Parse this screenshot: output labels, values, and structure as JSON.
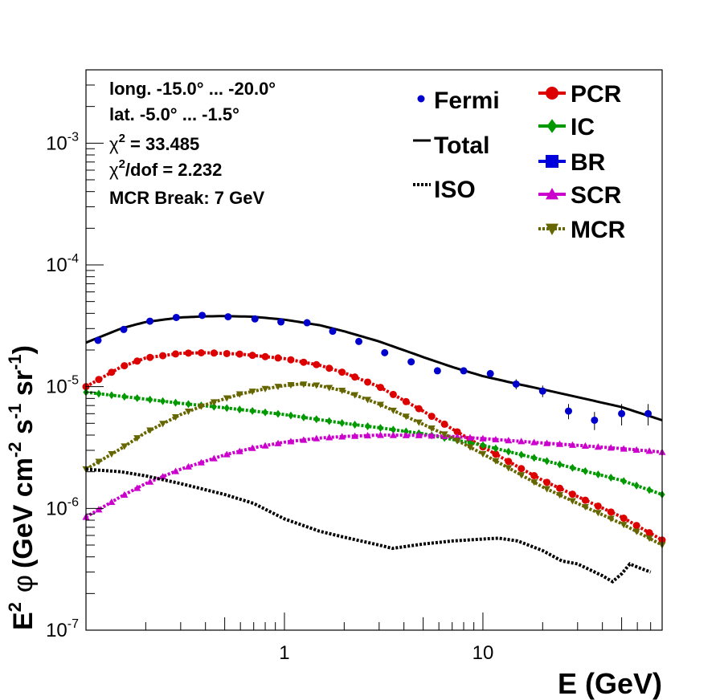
{
  "chart_data": {
    "type": "line",
    "xlabel": "E (GeV)",
    "ylabel_parts": {
      "e": "E",
      "e_sup": "2",
      "phi": "φ",
      "unit_open": "(GeV cm",
      "cm_sup": "-2",
      "s": " s",
      "s_sup": "-1",
      "sr": " sr",
      "sr_sup": "-1",
      "close": ")"
    },
    "x_scale": "log",
    "y_scale": "log",
    "xlim": [
      0.1,
      80
    ],
    "ylim": [
      1e-07,
      0.004
    ],
    "x_ticks": [
      {
        "value": 1,
        "label": "1"
      },
      {
        "value": 10,
        "label": "10"
      }
    ],
    "y_ticks": [
      {
        "value": 1e-07,
        "base": "10",
        "exp": "-7"
      },
      {
        "value": 1e-06,
        "base": "10",
        "exp": "-6"
      },
      {
        "value": 1e-05,
        "base": "10",
        "exp": "-5"
      },
      {
        "value": 0.0001,
        "base": "10",
        "exp": "-4"
      },
      {
        "value": 0.001,
        "base": "10",
        "exp": "-3"
      }
    ],
    "grid": false,
    "info": {
      "line1": "long. -15.0° ... -20.0°",
      "line2": "lat. -5.0° ... -1.5°",
      "chi_symbol": "χ",
      "chi_sup": "2",
      "chi_value": " = 33.485",
      "chidof_sup": "2",
      "chidof_value": "/dof = 2.232",
      "line5": "MCR Break:  7 GeV"
    },
    "legend_left": [
      {
        "key": "fermi",
        "label": "Fermi"
      },
      {
        "key": "total",
        "label": "Total"
      },
      {
        "key": "iso",
        "label": "ISO"
      }
    ],
    "legend_right": [
      {
        "key": "pcr",
        "label": "PCR"
      },
      {
        "key": "ic",
        "label": "IC"
      },
      {
        "key": "br",
        "label": "BR"
      },
      {
        "key": "scr",
        "label": "SCR"
      },
      {
        "key": "mcr",
        "label": "MCR"
      }
    ],
    "colors": {
      "fermi": "#0000cc",
      "total": "#000000",
      "iso": "#000000",
      "pcr": "#dd0000",
      "ic": "#009900",
      "br": "#0000dd",
      "scr": "#cc00cc",
      "mcr": "#666600"
    },
    "fermi": {
      "x": [
        0.115,
        0.155,
        0.21,
        0.285,
        0.385,
        0.52,
        0.71,
        0.96,
        1.3,
        1.75,
        2.37,
        3.2,
        4.35,
        5.9,
        8.0,
        10.9,
        14.7,
        20.0,
        27.0,
        36.5,
        50.0,
        68.0
      ],
      "y": [
        2.4e-05,
        2.95e-05,
        3.45e-05,
        3.7e-05,
        3.85e-05,
        3.75e-05,
        3.6e-05,
        3.4e-05,
        3.35e-05,
        2.85e-05,
        2.35e-05,
        1.9e-05,
        1.6e-05,
        1.35e-05,
        1.35e-05,
        1.28e-05,
        1.05e-05,
        9.2e-06,
        6.3e-06,
        5.3e-06,
        6e-06,
        6e-06
      ],
      "yerr": [
        1e-06,
        1e-06,
        1e-06,
        1e-06,
        1e-06,
        1e-06,
        1e-06,
        1e-06,
        1e-06,
        1e-06,
        8e-07,
        7e-07,
        6e-07,
        6e-07,
        7e-07,
        9e-07,
        1e-06,
        1e-06,
        9e-07,
        9e-07,
        1.2e-06,
        1.2e-06
      ]
    },
    "series": [
      {
        "key": "total",
        "style": "solid",
        "marker": "none",
        "x": [
          0.1,
          0.15,
          0.2,
          0.3,
          0.4,
          0.5,
          0.7,
          1.0,
          1.5,
          2.0,
          3.0,
          5.0,
          7.0,
          10,
          15,
          20,
          30,
          50,
          80
        ],
        "y": [
          2.3e-05,
          3e-05,
          3.4e-05,
          3.7e-05,
          3.78e-05,
          3.8e-05,
          3.75e-05,
          3.55e-05,
          3.2e-05,
          2.85e-05,
          2.35e-05,
          1.75e-05,
          1.45e-05,
          1.22e-05,
          1.05e-05,
          9.5e-06,
          8.2e-06,
          6.8e-06,
          5.3e-06
        ]
      },
      {
        "key": "pcr",
        "style": "dotted",
        "marker": "circle",
        "x": [
          0.1,
          0.15,
          0.2,
          0.3,
          0.4,
          0.6,
          1.0,
          1.5,
          2.0,
          3.0,
          5.0,
          7.0,
          10,
          15,
          20,
          30,
          50,
          80
        ],
        "y": [
          1e-05,
          1.45e-05,
          1.72e-05,
          1.88e-05,
          1.9e-05,
          1.85e-05,
          1.7e-05,
          1.5e-05,
          1.3e-05,
          1e-05,
          6.3e-06,
          4.5e-06,
          3.2e-06,
          2.2e-06,
          1.7e-06,
          1.25e-06,
          8.5e-07,
          5.5e-07
        ]
      },
      {
        "key": "ic",
        "style": "dotted",
        "marker": "diamond",
        "x": [
          0.1,
          0.2,
          0.3,
          0.5,
          1.0,
          2.0,
          3.0,
          5.0,
          10,
          20,
          30,
          50,
          80
        ],
        "y": [
          9e-06,
          7.9e-06,
          7.3e-06,
          6.7e-06,
          5.9e-06,
          5e-06,
          4.6e-06,
          4.1e-06,
          3.3e-06,
          2.5e-06,
          2.1e-06,
          1.7e-06,
          1.3e-06
        ]
      },
      {
        "key": "scr",
        "style": "dotted",
        "marker": "triangle",
        "x": [
          0.1,
          0.15,
          0.2,
          0.3,
          0.5,
          0.7,
          1.0,
          1.5,
          2.0,
          3.0,
          5.0,
          7.0,
          10,
          20,
          30,
          50,
          80
        ],
        "y": [
          8.5e-07,
          1.25e-06,
          1.6e-06,
          2.1e-06,
          2.75e-06,
          3.15e-06,
          3.5e-06,
          3.78e-06,
          3.9e-06,
          4e-06,
          3.98e-06,
          3.9e-06,
          3.75e-06,
          3.45e-06,
          3.3e-06,
          3.1e-06,
          2.9e-06
        ]
      },
      {
        "key": "mcr",
        "style": "dotted",
        "marker": "triangle-down",
        "x": [
          0.1,
          0.15,
          0.2,
          0.3,
          0.4,
          0.6,
          0.8,
          1.0,
          1.2,
          1.5,
          2.0,
          3.0,
          5.0,
          7.0,
          10,
          15,
          20,
          30,
          50,
          80
        ],
        "y": [
          2.1e-06,
          3.1e-06,
          4.2e-06,
          5.9e-06,
          7.1e-06,
          8.7e-06,
          9.6e-06,
          1.02e-05,
          1.05e-05,
          1.02e-05,
          9.2e-06,
          7.2e-06,
          4.9e-06,
          3.8e-06,
          2.8e-06,
          1.95e-06,
          1.5e-06,
          1.1e-06,
          7.5e-07,
          5e-07
        ]
      },
      {
        "key": "iso",
        "style": "dotted",
        "marker": "none",
        "x": [
          0.1,
          0.15,
          0.2,
          0.3,
          0.5,
          0.7,
          1.0,
          1.5,
          2.0,
          3.0,
          3.5,
          5.0,
          7.0,
          10,
          12,
          15,
          20,
          25,
          30,
          40,
          45,
          50,
          55,
          60,
          70
        ],
        "y": [
          2.1e-06,
          2e-06,
          1.85e-06,
          1.6e-06,
          1.3e-06,
          1.1e-06,
          8.2e-07,
          6.5e-07,
          5.8e-07,
          5e-07,
          4.7e-07,
          5.1e-07,
          5.4e-07,
          5.6e-07,
          5.7e-07,
          5.4e-07,
          4.5e-07,
          3.7e-07,
          3.5e-07,
          2.8e-07,
          2.5e-07,
          2.9e-07,
          3.5e-07,
          3.3e-07,
          3e-07
        ]
      }
    ]
  }
}
